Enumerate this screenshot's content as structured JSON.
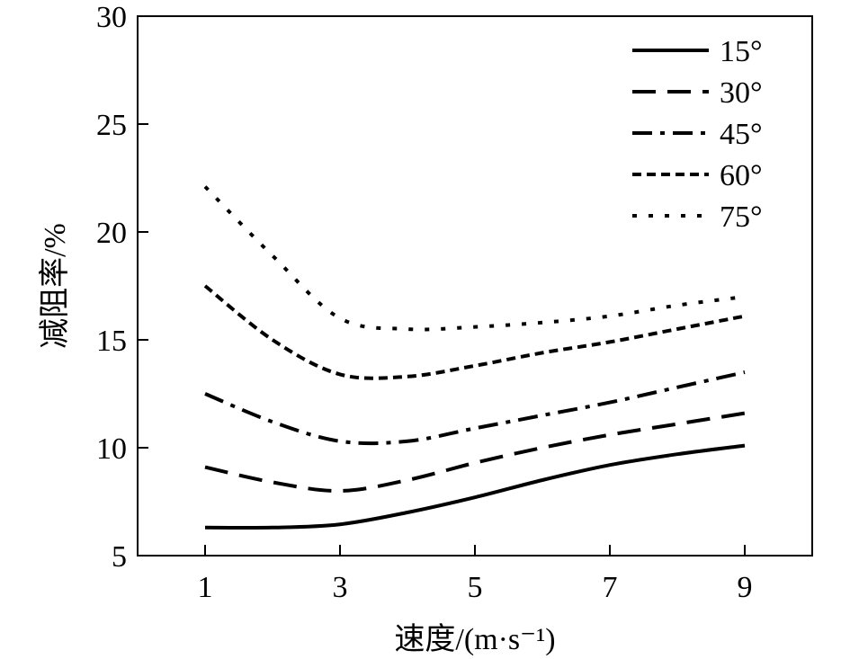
{
  "chart_data": {
    "type": "line",
    "xlabel": "速度/(m·s⁻¹)",
    "ylabel": "减阻率/%",
    "xlim": [
      0,
      10
    ],
    "ylim": [
      5,
      30
    ],
    "xticks": [
      1,
      3,
      5,
      7,
      9
    ],
    "yticks": [
      5,
      10,
      15,
      20,
      25,
      30
    ],
    "grid": false,
    "legend_position": "top-right",
    "x": [
      1,
      2,
      3,
      4,
      5,
      6,
      7,
      8,
      9
    ],
    "series": [
      {
        "name": "15°",
        "dash": "solid",
        "values": [
          6.3,
          6.3,
          6.45,
          7.0,
          7.7,
          8.5,
          9.2,
          9.7,
          10.1
        ]
      },
      {
        "name": "30°",
        "dash": "dashed",
        "values": [
          9.1,
          8.4,
          8.0,
          8.5,
          9.3,
          10.0,
          10.6,
          11.1,
          11.6
        ]
      },
      {
        "name": "45°",
        "dash": "dashdot",
        "values": [
          12.5,
          11.2,
          10.3,
          10.3,
          10.9,
          11.5,
          12.1,
          12.8,
          13.5
        ]
      },
      {
        "name": "60°",
        "dash": "shortdash",
        "values": [
          17.5,
          15.0,
          13.4,
          13.3,
          13.8,
          14.4,
          14.9,
          15.5,
          16.1
        ]
      },
      {
        "name": "75°",
        "dash": "dotted",
        "values": [
          22.1,
          18.9,
          16.0,
          15.5,
          15.6,
          15.8,
          16.1,
          16.6,
          17.0
        ]
      }
    ]
  }
}
